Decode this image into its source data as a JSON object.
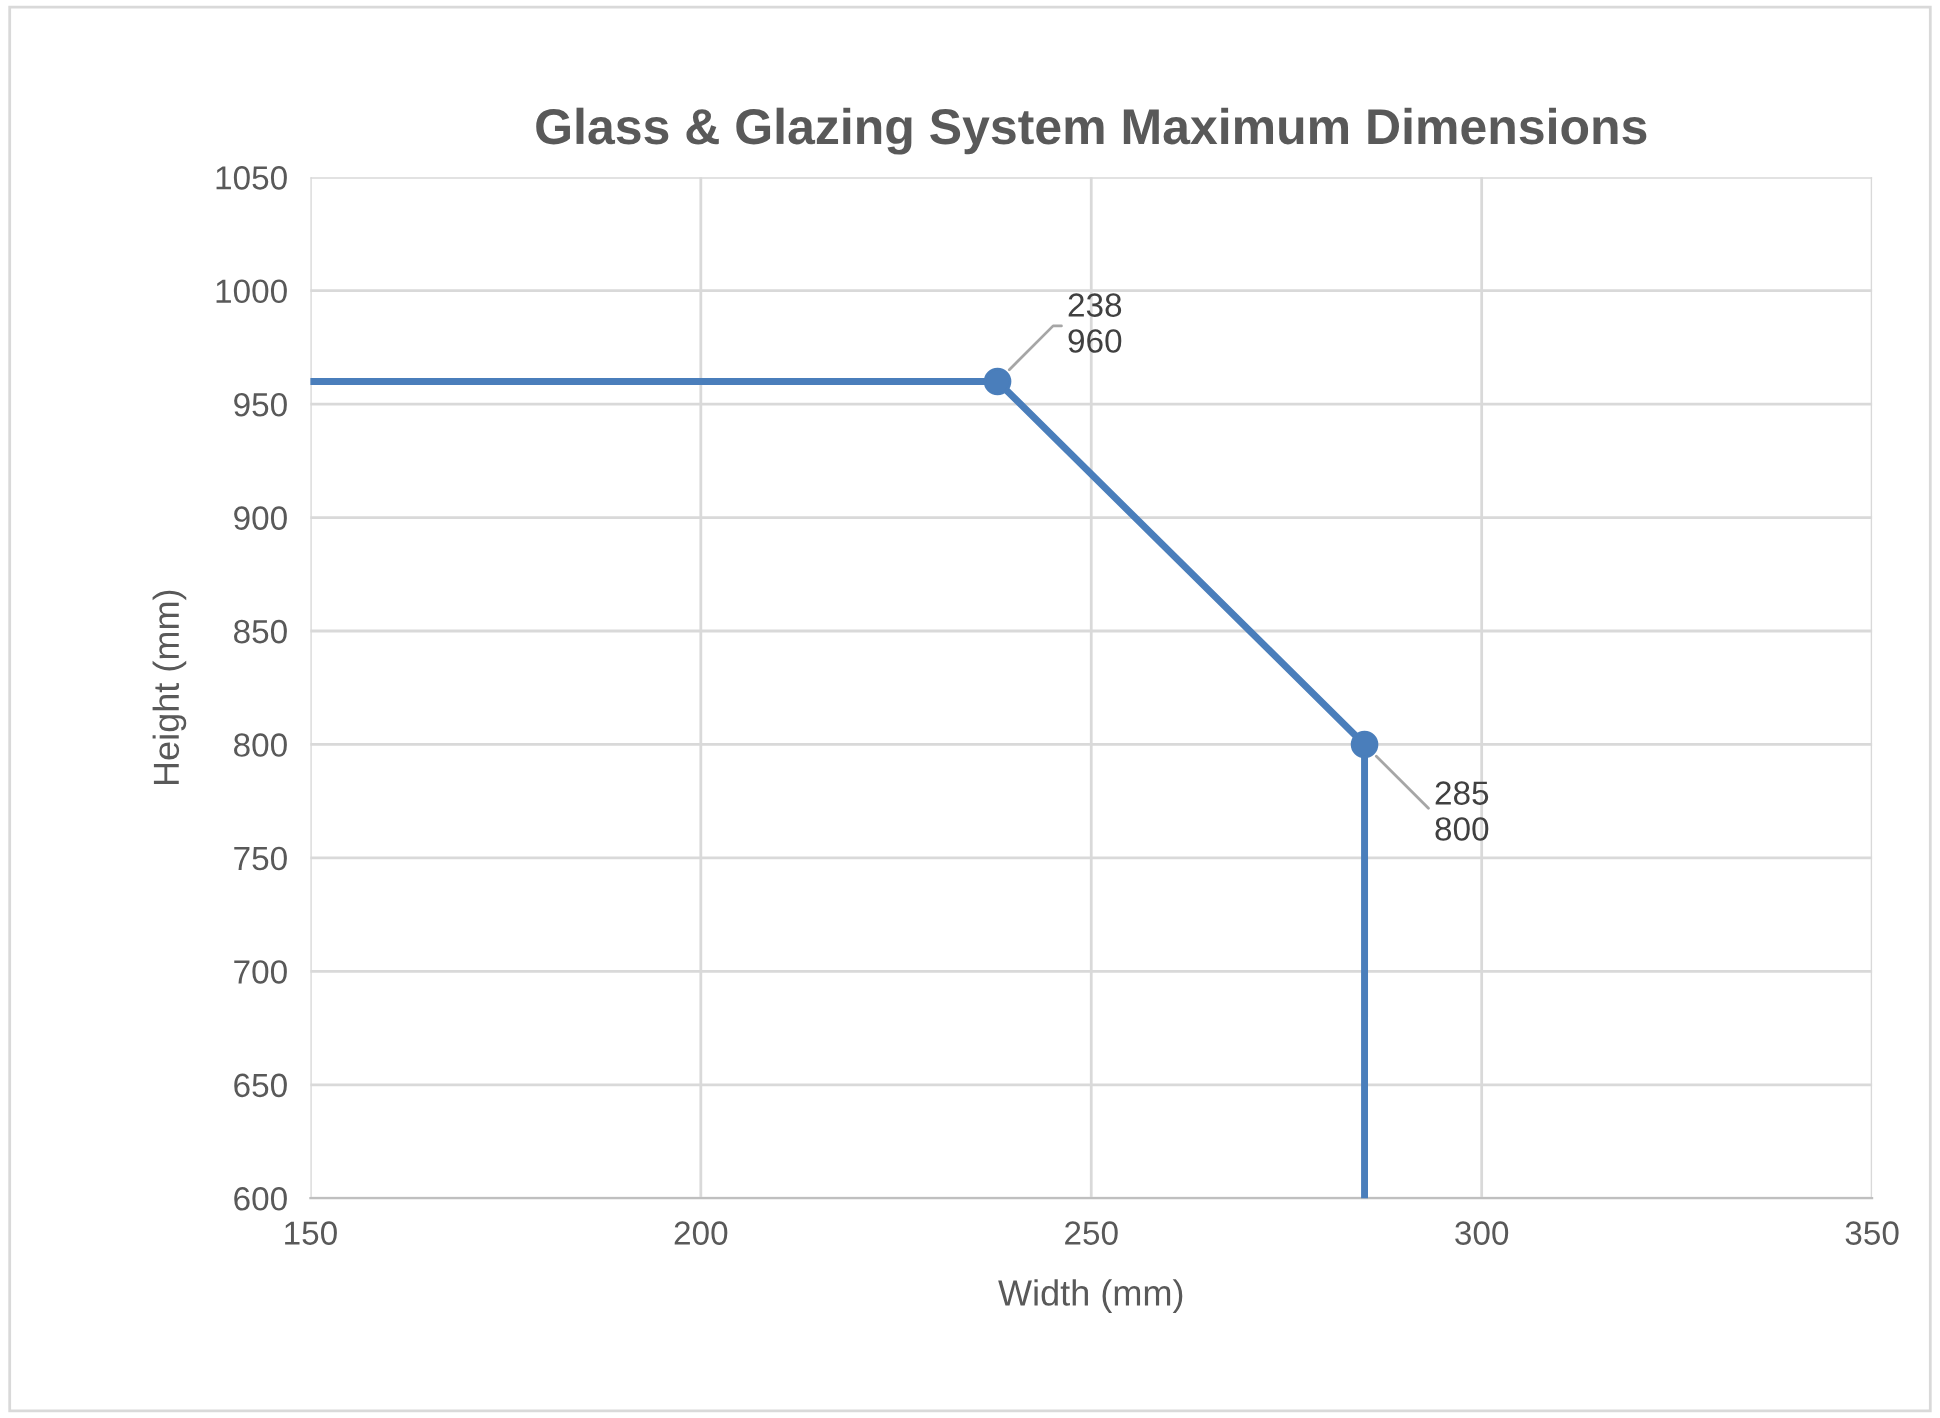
{
  "chart_data": {
    "type": "line",
    "title": "Glass & Glazing System Maximum Dimensions",
    "xlabel": "Width (mm)",
    "ylabel": "Height (mm)",
    "series": [
      {
        "color": "#4a7ebb",
        "x": [
          150,
          238,
          285,
          285
        ],
        "values": [
          960,
          960,
          800,
          600
        ],
        "marker": "none"
      },
      {
        "type": "scatter",
        "color": "#4a7ebb",
        "x": [
          238,
          285
        ],
        "values": [
          960,
          800
        ],
        "marker": "circle"
      }
    ],
    "annotations": [
      {
        "text": "238\n960",
        "x": 238,
        "y": 960
      },
      {
        "text": "285\n800",
        "x": 285,
        "y": 800
      }
    ],
    "xlim": [
      150,
      350
    ],
    "xticks": [
      150,
      200,
      250,
      300,
      350
    ],
    "ylim": [
      600,
      1050
    ],
    "yticks": [
      600,
      650,
      700,
      750,
      800,
      850,
      900,
      950,
      1000,
      1050
    ],
    "grid": true,
    "legend": false
  }
}
